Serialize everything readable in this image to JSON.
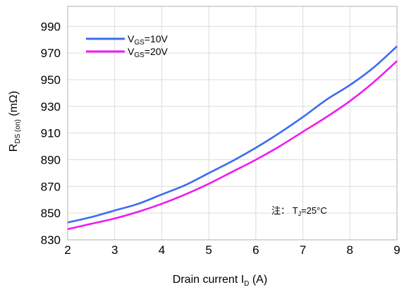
{
  "chart_data": {
    "type": "line",
    "title": "",
    "xlabel": "Drain current I_D (A)",
    "xlabel_parts": {
      "main": "Drain current I",
      "sub": "D",
      "tail": " (A)"
    },
    "ylabel": "R_DS(on) (mΩ)",
    "ylabel_parts": {
      "main": "R",
      "sub": "DS (on)",
      "tail": " (mΩ)"
    },
    "xlim": [
      2,
      9
    ],
    "ylim": [
      830,
      1005
    ],
    "x_ticks": [
      "2",
      "3",
      "4",
      "5",
      "6",
      "7",
      "8",
      "9"
    ],
    "y_ticks": [
      "830",
      "850",
      "870",
      "890",
      "910",
      "930",
      "950",
      "970",
      "990"
    ],
    "grid": true,
    "legend_position": "top-left",
    "series": [
      {
        "name": "VGS=10V",
        "label_parts": {
          "main": "V",
          "sub": "GS",
          "tail": "=10V"
        },
        "color": "#3b6cf0",
        "x": [
          2,
          2.5,
          3,
          3.5,
          4,
          4.5,
          5,
          5.5,
          6,
          6.5,
          7,
          7.5,
          8,
          8.5,
          9
        ],
        "y": [
          843,
          847,
          852,
          857,
          864,
          871,
          880,
          889,
          899,
          910,
          922,
          935,
          946,
          959,
          975
        ]
      },
      {
        "name": "VGS=20V",
        "label_parts": {
          "main": "V",
          "sub": "GS",
          "tail": "=20V"
        },
        "color": "#f01af0",
        "x": [
          2,
          2.5,
          3,
          3.5,
          4,
          4.5,
          5,
          5.5,
          6,
          6.5,
          7,
          7.5,
          8,
          8.5,
          9
        ],
        "y": [
          838,
          842,
          846,
          851,
          857,
          864,
          872,
          881,
          890,
          900,
          911,
          922,
          934,
          948,
          964
        ]
      }
    ],
    "annotations": [
      {
        "text_prefix": "注：  T",
        "text_sub": "J",
        "text_tail": "=25°C"
      }
    ]
  }
}
